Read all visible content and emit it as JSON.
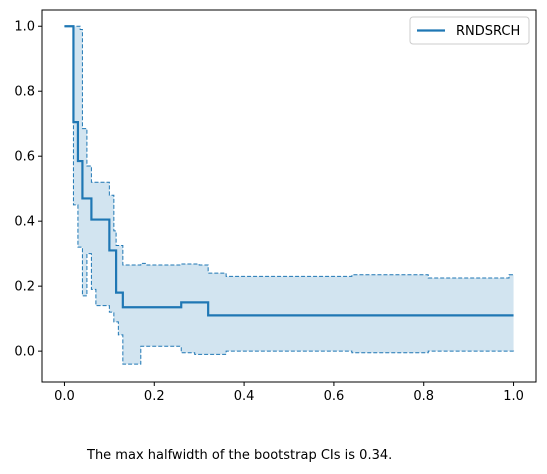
{
  "chart_data": {
    "type": "line",
    "step": true,
    "xlim": [
      -0.05,
      1.05
    ],
    "ylim": [
      -0.095,
      1.05
    ],
    "x_ticks": [
      0.0,
      0.2,
      0.4,
      0.6,
      0.8,
      1.0
    ],
    "x_tick_labels": [
      "0.0",
      "0.2",
      "0.4",
      "0.6",
      "0.8",
      "1.0"
    ],
    "y_ticks": [
      0.0,
      0.2,
      0.4,
      0.6,
      0.8,
      1.0
    ],
    "y_tick_labels": [
      "0.0",
      "0.2",
      "0.4",
      "0.6",
      "0.8",
      "1.0"
    ],
    "grid": false,
    "legend_position": "top-right",
    "series": [
      {
        "name": "RNDSRCH",
        "color": "#1f77b4",
        "x": [
          0.0,
          0.02,
          0.03,
          0.04,
          0.06,
          0.1,
          0.115,
          0.13,
          0.26,
          0.32,
          1.0
        ],
        "y": [
          1.0,
          0.705,
          0.585,
          0.47,
          0.405,
          0.31,
          0.18,
          0.135,
          0.15,
          0.11,
          0.11
        ]
      }
    ],
    "ci_upper": {
      "x": [
        0.0,
        0.035,
        0.04,
        0.05,
        0.06,
        0.1,
        0.11,
        0.115,
        0.13,
        0.17,
        0.18,
        0.26,
        0.3,
        0.32,
        0.36,
        0.64,
        0.81,
        0.99,
        1.0
      ],
      "y": [
        1.0,
        0.99,
        0.685,
        0.57,
        0.52,
        0.48,
        0.37,
        0.325,
        0.265,
        0.27,
        0.265,
        0.268,
        0.265,
        0.24,
        0.23,
        0.235,
        0.225,
        0.235,
        0.235
      ]
    },
    "ci_lower": {
      "x": [
        0.0,
        0.02,
        0.03,
        0.04,
        0.05,
        0.06,
        0.07,
        0.1,
        0.11,
        0.12,
        0.13,
        0.17,
        0.26,
        0.29,
        0.36,
        0.64,
        0.81,
        1.0
      ],
      "y": [
        1.0,
        0.45,
        0.32,
        0.17,
        0.3,
        0.19,
        0.14,
        0.12,
        0.09,
        0.05,
        -0.04,
        0.015,
        -0.005,
        -0.01,
        0.0,
        -0.005,
        0.0,
        -0.005
      ]
    }
  },
  "caption": "The max halfwidth of the bootstrap CIs is 0.34."
}
